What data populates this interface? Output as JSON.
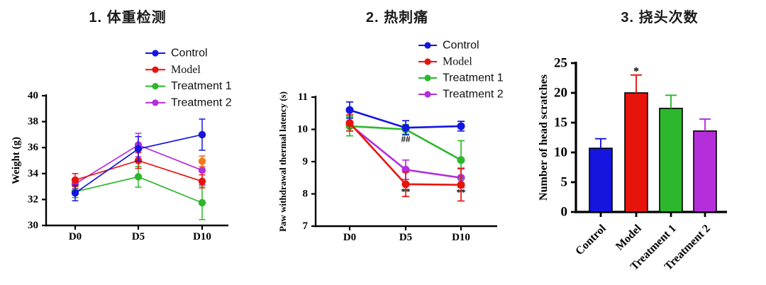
{
  "figure": {
    "background": "#ffffff"
  },
  "chart_data": [
    {
      "id": "weight",
      "type": "line",
      "title": "1. 体重检测",
      "xlabel": "",
      "ylabel": "Weight (g)",
      "ylim": [
        30,
        40
      ],
      "yticks": [
        30,
        32,
        34,
        36,
        38,
        40
      ],
      "categories": [
        "D0",
        "D5",
        "D10"
      ],
      "grid": false,
      "legend_position": "top-right",
      "series": [
        {
          "name": "Control",
          "color": "#1515E0",
          "values": [
            32.5,
            35.9,
            37.0
          ],
          "errors": [
            0.6,
            0.95,
            1.2
          ]
        },
        {
          "name": "Model",
          "color": "#E8140C",
          "serif_label": true,
          "values": [
            33.5,
            35.0,
            33.4
          ],
          "errors": [
            0.5,
            0.6,
            0.5
          ]
        },
        {
          "name": "Treatment 1",
          "color": "#2CB72C",
          "values": [
            32.6,
            33.75,
            31.75
          ],
          "errors": [
            0.45,
            0.8,
            1.3
          ]
        },
        {
          "name": "Treatment 2",
          "color": "#B42FD9",
          "values": [
            33.2,
            36.2,
            34.25
          ],
          "errors": [
            0.35,
            0.9,
            1.1
          ]
        }
      ],
      "extra_points": [
        {
          "category": "D10",
          "value": 34.95,
          "error": 0.4,
          "color": "#F5781E",
          "label": "unlabeled-orange-point"
        }
      ],
      "annotations": []
    },
    {
      "id": "thermal-pain",
      "type": "line",
      "title": "2. 热刺痛",
      "xlabel": "",
      "ylabel": "Paw withdrawal thermal latency (s)",
      "ylim": [
        7,
        11
      ],
      "yticks": [
        7,
        8,
        9,
        10,
        11
      ],
      "categories": [
        "D0",
        "D5",
        "D10"
      ],
      "grid": false,
      "legend_position": "top-right",
      "series": [
        {
          "name": "Control",
          "color": "#1515E0",
          "values": [
            10.6,
            10.05,
            10.1
          ],
          "errors": [
            0.25,
            0.22,
            0.15
          ]
        },
        {
          "name": "Model",
          "color": "#E8140C",
          "serif_label": true,
          "values": [
            10.2,
            8.3,
            8.28
          ],
          "errors": [
            0.25,
            0.38,
            0.5
          ]
        },
        {
          "name": "Treatment 1",
          "color": "#2CB72C",
          "values": [
            10.1,
            10.0,
            9.05
          ],
          "errors": [
            0.3,
            0.15,
            0.6
          ]
        },
        {
          "name": "Treatment 2",
          "color": "#B42FD9",
          "values": [
            10.15,
            8.75,
            8.5
          ],
          "errors": [
            0.2,
            0.3,
            0.3
          ]
        }
      ],
      "extra_points": [],
      "annotations": [
        {
          "category": "D5",
          "value": 9.7,
          "text": "##"
        },
        {
          "category": "D5",
          "value": 8.08,
          "text": "**"
        },
        {
          "category": "D10",
          "value": 8.06,
          "text": "**"
        }
      ]
    },
    {
      "id": "head-scratches",
      "type": "bar",
      "title": "3. 挠头次数",
      "xlabel": "",
      "ylabel": "Number of head scratches",
      "ylim": [
        0,
        25
      ],
      "yticks": [
        0,
        5,
        10,
        15,
        20,
        25
      ],
      "categories": [
        "Control",
        "Model",
        "Treatment 1",
        "Treatment 2"
      ],
      "values": [
        10.7,
        20,
        17.4,
        13.6
      ],
      "errors": [
        1.6,
        3,
        2.2,
        2
      ],
      "colors": [
        "#1515E0",
        "#E8140C",
        "#2CB72C",
        "#B42FD9"
      ],
      "grid": false,
      "annotations": [
        {
          "category": "Model",
          "value": 23.6,
          "text": "*"
        }
      ]
    }
  ]
}
